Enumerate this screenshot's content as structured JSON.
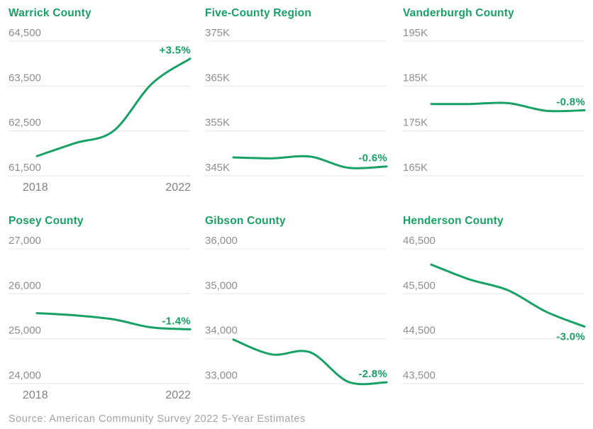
{
  "colors": {
    "accent_green": "#18a164",
    "tick_gray": "#8e8e8e",
    "axis_year_gray": "#818181",
    "grid_gray": "#e4e4e4",
    "source_gray": "#a3a3a3",
    "background": "#ffffff"
  },
  "source_note": "Source: American Community Survey 2022 5-Year Estimates",
  "chart_data": [
    {
      "type": "line",
      "title": "Warrick County",
      "x": [
        2018,
        2019,
        2020,
        2021,
        2022
      ],
      "values": [
        61940,
        62230,
        62500,
        63550,
        64110
      ],
      "ylim": [
        61500,
        64500
      ],
      "yticks": [
        64500,
        63500,
        62500,
        61500
      ],
      "ytick_labels": [
        "64,500",
        "63,500",
        "62,500",
        "61,500"
      ],
      "grid": true,
      "legend": "none",
      "change_label": "+3.5%",
      "change_label_position": "above-line-end",
      "x_axis_labels": [
        "2018",
        "2022"
      ]
    },
    {
      "type": "line",
      "title": "Five-County Region",
      "x": [
        2018,
        2019,
        2020,
        2021,
        2022
      ],
      "values": [
        349100,
        348900,
        349300,
        346800,
        347100
      ],
      "ylim": [
        345000,
        375000
      ],
      "yticks": [
        375000,
        365000,
        355000,
        345000
      ],
      "ytick_labels": [
        "375K",
        "365K",
        "355K",
        "345K"
      ],
      "grid": true,
      "legend": "none",
      "change_label": "-0.6%",
      "change_label_position": "above-line-end",
      "x_axis_labels": []
    },
    {
      "type": "line",
      "title": "Vanderburgh County",
      "x": [
        2018,
        2019,
        2020,
        2021,
        2022
      ],
      "values": [
        181000,
        181000,
        181200,
        179500,
        179600
      ],
      "ylim": [
        165000,
        195000
      ],
      "yticks": [
        195000,
        185000,
        175000,
        165000
      ],
      "ytick_labels": [
        "195K",
        "185K",
        "175K",
        "165K"
      ],
      "grid": true,
      "legend": "none",
      "change_label": "-0.8%",
      "change_label_position": "above-line-end",
      "x_axis_labels": []
    },
    {
      "type": "line",
      "title": "Posey County",
      "x": [
        2018,
        2019,
        2020,
        2021,
        2022
      ],
      "values": [
        25570,
        25520,
        25430,
        25250,
        25210
      ],
      "ylim": [
        24000,
        27000
      ],
      "yticks": [
        27000,
        26000,
        25000,
        24000
      ],
      "ytick_labels": [
        "27,000",
        "26,000",
        "25,000",
        "24,000"
      ],
      "grid": true,
      "legend": "none",
      "change_label": "-1.4%",
      "change_label_position": "above-line-end",
      "x_axis_labels": [
        "2018",
        "2022"
      ]
    },
    {
      "type": "line",
      "title": "Gibson County",
      "x": [
        2018,
        2019,
        2020,
        2021,
        2022
      ],
      "values": [
        33980,
        33650,
        33700,
        33040,
        33030
      ],
      "ylim": [
        33000,
        36000
      ],
      "yticks": [
        36000,
        35000,
        34000,
        33000
      ],
      "ytick_labels": [
        "36,000",
        "35,000",
        "34,000",
        "33,000"
      ],
      "grid": true,
      "legend": "none",
      "change_label": "-2.8%",
      "change_label_position": "above-line-end",
      "x_axis_labels": []
    },
    {
      "type": "line",
      "title": "Henderson County",
      "x": [
        2018,
        2019,
        2020,
        2021,
        2022
      ],
      "values": [
        46150,
        45820,
        45580,
        45100,
        44770
      ],
      "ylim": [
        43500,
        46500
      ],
      "yticks": [
        46500,
        45500,
        44500,
        43500
      ],
      "ytick_labels": [
        "46,500",
        "45,500",
        "44,500",
        "43,500"
      ],
      "grid": true,
      "legend": "none",
      "change_label": "-3.0%",
      "change_label_position": "below-line-end",
      "x_axis_labels": []
    }
  ]
}
